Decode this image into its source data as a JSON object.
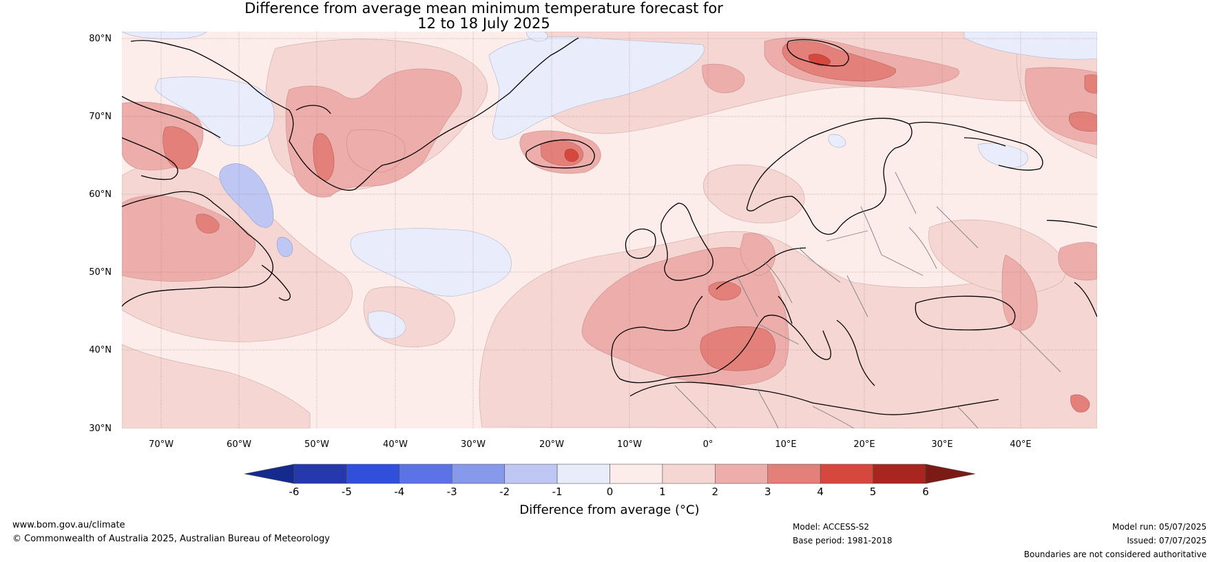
{
  "title": {
    "line1": "Difference from average mean minimum temperature forecast for",
    "line2": "12 to 18 July 2025"
  },
  "map": {
    "latitude_labels": [
      "80°N",
      "70°N",
      "60°N",
      "50°N",
      "40°N",
      "30°N"
    ],
    "longitude_labels": [
      "70°W",
      "60°W",
      "50°W",
      "40°W",
      "30°W",
      "20°W",
      "10°W",
      "0°",
      "10°E",
      "20°E",
      "30°E",
      "40°E"
    ],
    "features": [
      {
        "name": "Greenland warm anomaly",
        "class": "3 to 4"
      },
      {
        "name": "Iceland warm anomaly",
        "class": "4 to 5"
      },
      {
        "name": "Svalbard warm anomaly",
        "class": "4 to 5"
      },
      {
        "name": "Western Mediterranean warm anomaly",
        "class": "3 to 4"
      },
      {
        "name": "Labrador Sea cool anomaly",
        "class": "-2 to -1"
      },
      {
        "name": "Central North Atlantic cool anomaly",
        "class": "-1 to 0"
      }
    ]
  },
  "colorbar": {
    "ticks": [
      "-6",
      "-5",
      "-4",
      "-3",
      "-2",
      "-1",
      "0",
      "1",
      "2",
      "3",
      "4",
      "5",
      "6"
    ],
    "colors": [
      "#2539ad",
      "#3050dc",
      "#5b73e6",
      "#8799eb",
      "#bec7f3",
      "#e8ecfb",
      "#fcecea",
      "#f6d6d3",
      "#edaeab",
      "#e4807a",
      "#d6473e",
      "#a92620"
    ],
    "under_color": "#142a8c",
    "over_color": "#7c1a16",
    "label": "Difference from average (°C)"
  },
  "footer": {
    "website": "www.bom.gov.au/climate",
    "copyright": "© Commonwealth of Australia 2025, Australian Bureau of Meteorology",
    "model": "Model: ACCESS-S2",
    "base_period": "Base period: 1981-2018",
    "model_run": "Model run: 05/07/2025",
    "issued": "Issued: 07/07/2025",
    "disclaimer": "Boundaries are not considered authoritative"
  }
}
